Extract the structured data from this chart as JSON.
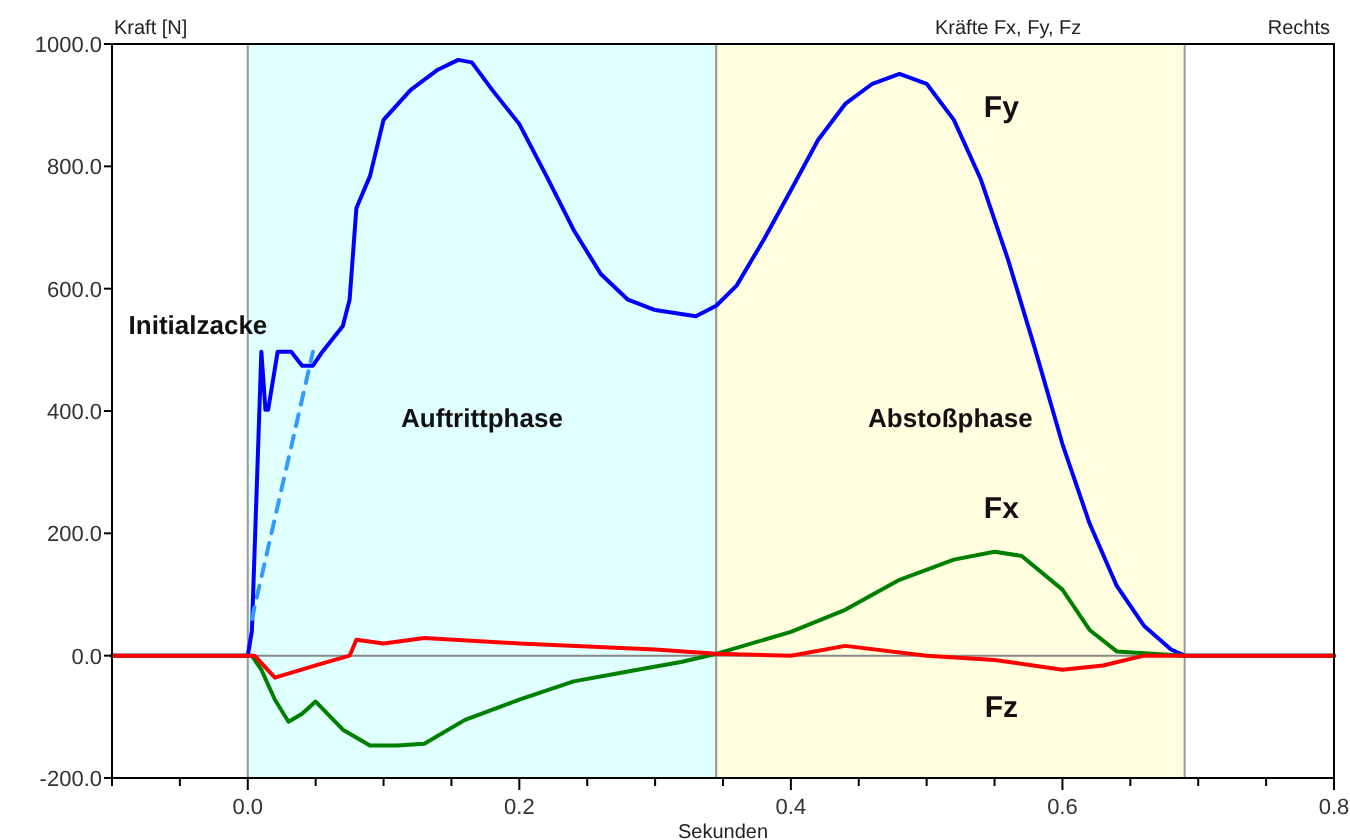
{
  "chart_data": {
    "type": "line",
    "title": "Kräfte Fx, Fy, Fz",
    "subtitle": "Rechts",
    "xlabel": "Sekunden",
    "ylabel": "Kraft [N]",
    "xlim": [
      -0.1,
      0.8
    ],
    "ylim": [
      -200,
      1000
    ],
    "xticks": [
      {
        "value": -0.1,
        "label": null
      },
      {
        "value": -0.05,
        "label": null
      },
      {
        "value": 0,
        "label": "0.0"
      },
      {
        "value": 0.05,
        "label": null
      },
      {
        "value": 0.1,
        "label": null
      },
      {
        "value": 0.15,
        "label": null
      },
      {
        "value": 0.2,
        "label": "0.2"
      },
      {
        "value": 0.25,
        "label": null
      },
      {
        "value": 0.3,
        "label": null
      },
      {
        "value": 0.35,
        "label": null
      },
      {
        "value": 0.4,
        "label": "0.4"
      },
      {
        "value": 0.45,
        "label": null
      },
      {
        "value": 0.5,
        "label": null
      },
      {
        "value": 0.55,
        "label": null
      },
      {
        "value": 0.6,
        "label": "0.6"
      },
      {
        "value": 0.65,
        "label": null
      },
      {
        "value": 0.7,
        "label": null
      },
      {
        "value": 0.75,
        "label": null
      },
      {
        "value": 0.8,
        "label": "0.8"
      }
    ],
    "yticks": [
      {
        "value": -200,
        "label": "-200.0"
      },
      {
        "value": 0,
        "label": "0.0"
      },
      {
        "value": 200,
        "label": "200.0"
      },
      {
        "value": 400,
        "label": "400.0"
      },
      {
        "value": 600,
        "label": "600.0"
      },
      {
        "value": 800,
        "label": "800.0"
      },
      {
        "value": 1000,
        "label": "1000.0"
      }
    ],
    "grid": false,
    "marker": "none",
    "bands": [
      {
        "axis": "x",
        "from": 0,
        "to": 0.345,
        "label": "Auftrittphase",
        "color": "#e0ffff"
      },
      {
        "axis": "x",
        "from": 0.345,
        "to": 0.69,
        "label": "Abstoßphase",
        "color": "#ffffe0"
      }
    ],
    "ref_lines": [
      {
        "axis": "y",
        "value": 0,
        "color": "#888888"
      }
    ],
    "annotations": [
      {
        "text": "Initialzacke",
        "x": 0.01,
        "y": 500
      }
    ],
    "series": [
      {
        "name": "Fy",
        "color": "#0000ff",
        "x": [
          -0.1,
          0,
          0.003,
          0.007,
          0.01,
          0.013,
          0.015,
          0.022,
          0.032,
          0.04,
          0.048,
          0.055,
          0.07,
          0.075,
          0.08,
          0.09,
          0.1,
          0.12,
          0.14,
          0.155,
          0.165,
          0.18,
          0.2,
          0.22,
          0.24,
          0.26,
          0.28,
          0.3,
          0.33,
          0.345,
          0.36,
          0.38,
          0.4,
          0.42,
          0.44,
          0.46,
          0.48,
          0.5,
          0.52,
          0.54,
          0.56,
          0.58,
          0.6,
          0.62,
          0.64,
          0.66,
          0.68,
          0.69,
          0.8
        ],
        "values": [
          0,
          0,
          40,
          300,
          497,
          402,
          402,
          497,
          497,
          474,
          474,
          497,
          539,
          582,
          732,
          784,
          876,
          925,
          958,
          974,
          970,
          925,
          869,
          784,
          696,
          624,
          582,
          565,
          555,
          572,
          605,
          680,
          761,
          843,
          902,
          935,
          951,
          935,
          876,
          778,
          647,
          500,
          346,
          216,
          114,
          49,
          10,
          0,
          0
        ]
      },
      {
        "name": "Fx",
        "color": "#008000",
        "x": [
          -0.1,
          0,
          0.003,
          0.01,
          0.02,
          0.03,
          0.04,
          0.05,
          0.07,
          0.09,
          0.11,
          0.13,
          0.16,
          0.2,
          0.24,
          0.28,
          0.32,
          0.345,
          0.4,
          0.44,
          0.48,
          0.52,
          0.55,
          0.57,
          0.6,
          0.62,
          0.64,
          0.69,
          0.8
        ],
        "values": [
          0,
          0,
          0,
          -23,
          -72,
          -108,
          -95,
          -75,
          -121,
          -147,
          -147,
          -144,
          -105,
          -72,
          -42,
          -26,
          -10,
          3,
          39,
          75,
          124,
          157,
          170,
          163,
          108,
          42,
          7,
          0,
          0
        ]
      },
      {
        "name": "Fz",
        "color": "#ff0000",
        "x": [
          -0.1,
          0,
          0.005,
          0.02,
          0.05,
          0.075,
          0.08,
          0.1,
          0.13,
          0.2,
          0.3,
          0.345,
          0.4,
          0.44,
          0.5,
          0.55,
          0.6,
          0.63,
          0.66,
          0.8
        ],
        "values": [
          0,
          0,
          0,
          -36,
          -16,
          0,
          26,
          20,
          29,
          20,
          10,
          3,
          0,
          16,
          0,
          -7,
          -23,
          -16,
          0,
          0
        ]
      },
      {
        "color": "#3399ff",
        "line_style": "dashed",
        "x": [
          0.003,
          0.048
        ],
        "values": [
          60,
          497
        ]
      }
    ]
  }
}
